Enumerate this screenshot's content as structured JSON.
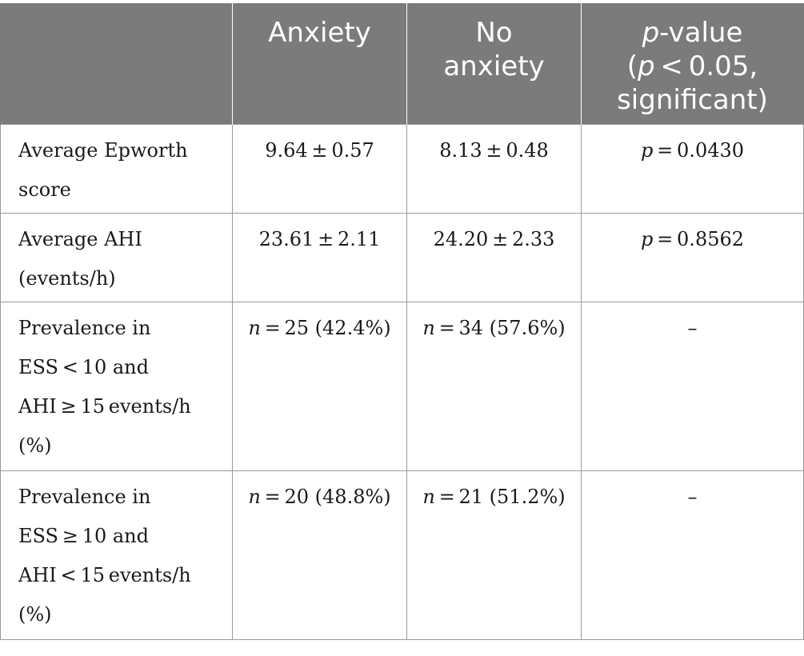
{
  "table": {
    "headers": {
      "col0": "",
      "col1": [
        "Anxiety"
      ],
      "col2": [
        "No",
        "anxiety"
      ],
      "col3": {
        "line1_italic": "p",
        "line1_rest": "-value",
        "line2_open": "(",
        "line2_italic": "p",
        "line2_rest": " < 0.05,",
        "line3": "significant)"
      }
    },
    "rows": [
      {
        "label": [
          "Average Epworth",
          "score"
        ],
        "anxiety": {
          "prefix": "",
          "text": "9.64 ± 0.57"
        },
        "no_anxiety": {
          "prefix": "",
          "text": "8.13 ± 0.48"
        },
        "p_value": {
          "prefix": "p",
          "text": " = 0.0430"
        }
      },
      {
        "label": [
          "Average AHI",
          "(events/h)"
        ],
        "anxiety": {
          "prefix": "",
          "text": "23.61 ± 2.11"
        },
        "no_anxiety": {
          "prefix": "",
          "text": "24.20 ± 2.33"
        },
        "p_value": {
          "prefix": "p",
          "text": " = 0.8562"
        }
      },
      {
        "label": [
          "Prevalence in",
          "ESS < 10 and",
          "AHI ≥ 15 events/h",
          "(%)"
        ],
        "anxiety": {
          "prefix": "n",
          "text": " = 25 (42.4%)"
        },
        "no_anxiety": {
          "prefix": "n",
          "text": " = 34 (57.6%)"
        },
        "p_value": {
          "prefix": "",
          "text": "–"
        }
      },
      {
        "label": [
          "Prevalence in",
          "ESS ≥ 10 and",
          "AHI < 15 events/h",
          "(%)"
        ],
        "anxiety": {
          "prefix": "n",
          "text": " = 20 (48.8%)"
        },
        "no_anxiety": {
          "prefix": "n",
          "text": " = 21 (51.2%)"
        },
        "p_value": {
          "prefix": "",
          "text": "–"
        }
      }
    ]
  }
}
